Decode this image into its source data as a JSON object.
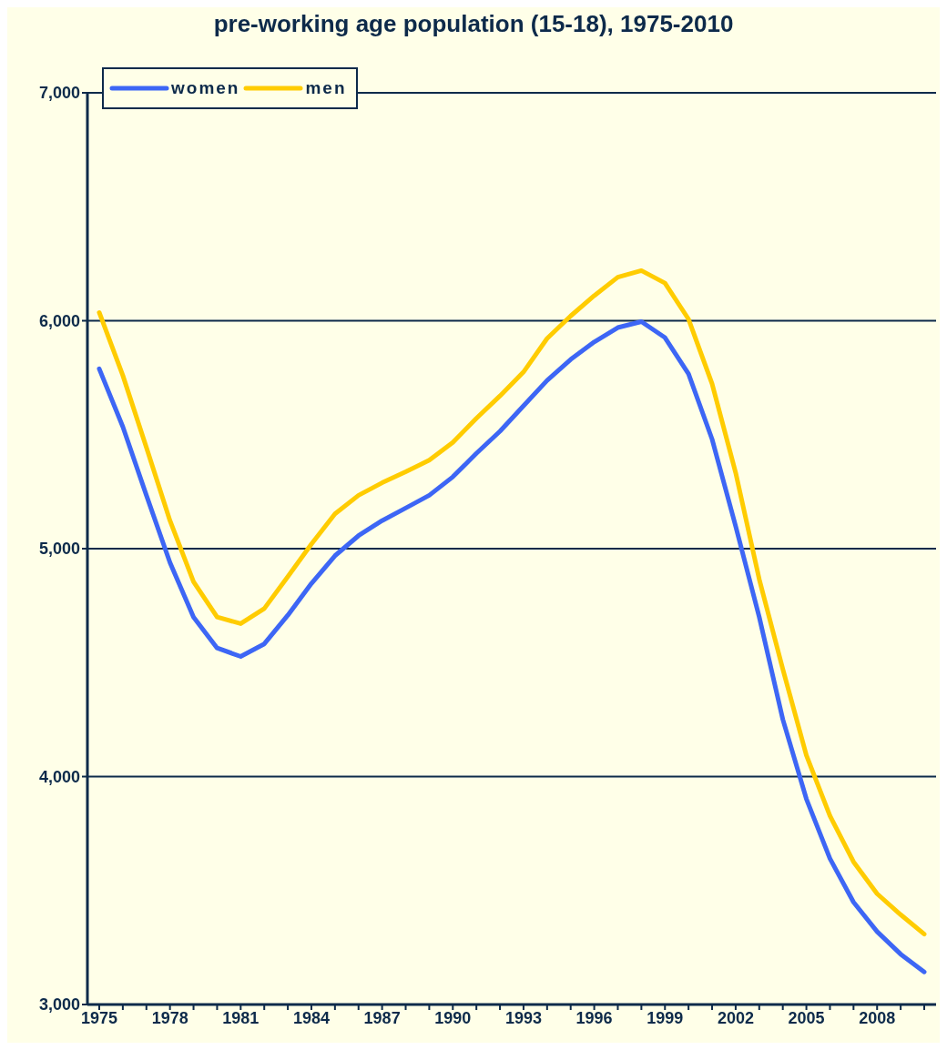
{
  "chart_data": {
    "type": "line",
    "title": "pre-working age population (15-18), 1975-2010",
    "categories": [
      "1975",
      null,
      null,
      "1978",
      null,
      null,
      "1981",
      null,
      null,
      "1984",
      null,
      null,
      "1987",
      null,
      null,
      "1990",
      null,
      null,
      "1993",
      null,
      null,
      "1996",
      null,
      null,
      "1999",
      null,
      null,
      "2002",
      null,
      null,
      "2005",
      null,
      null,
      "2008",
      null,
      null
    ],
    "series": [
      {
        "name": "women",
        "color": "#3d66f5",
        "values": [
          5789,
          5535,
          5234,
          4939,
          4700,
          4564,
          4527,
          4582,
          4708,
          4847,
          4969,
          5057,
          5123,
          5178,
          5234,
          5315,
          5418,
          5515,
          5627,
          5738,
          5830,
          5907,
          5970,
          5996,
          5926,
          5767,
          5480,
          5098,
          4700,
          4251,
          3902,
          3640,
          3449,
          3320,
          3221,
          3143
        ]
      },
      {
        "name": "men",
        "color": "#ffcc00",
        "values": [
          6036,
          5760,
          5444,
          5123,
          4855,
          4700,
          4671,
          4737,
          4877,
          5020,
          5153,
          5234,
          5289,
          5337,
          5388,
          5466,
          5572,
          5670,
          5775,
          5922,
          6021,
          6110,
          6191,
          6220,
          6165,
          6007,
          5723,
          5333,
          4866,
          4472,
          4093,
          3828,
          3626,
          3486,
          3394,
          3309
        ]
      }
    ],
    "ylim": [
      3000,
      7000
    ],
    "yticks": [
      {
        "value": 3000,
        "label": "3,000"
      },
      {
        "value": 4000,
        "label": "4,000"
      },
      {
        "value": 5000,
        "label": "5,000"
      },
      {
        "value": 6000,
        "label": "6,000"
      },
      {
        "value": 7000,
        "label": "7,000"
      }
    ],
    "grid": "y",
    "legend": "top left",
    "marker": "none",
    "line_style": "solid"
  }
}
